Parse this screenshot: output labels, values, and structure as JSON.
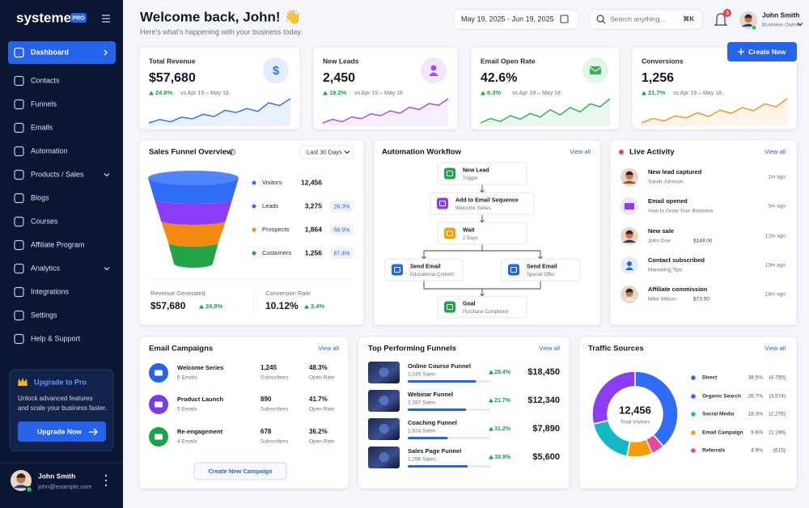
{
  "sidebar": {
    "logo": "systeme",
    "badge": "PRO",
    "nav": [
      "Dashboard",
      "Contacts",
      "Funnels",
      "Emails",
      "Automation",
      "Products / Sales",
      "Blogs",
      "Courses",
      "Affiliate Program",
      "Analytics",
      "Integrations",
      "Settings",
      "Help & Support"
    ],
    "upgrade": {
      "title": "Upgrade to Pro",
      "text_lines": [
        "Unlock advanced features",
        "and scale your business faster."
      ],
      "button": "Upgrade Now"
    },
    "user": {
      "name": "John Smith",
      "email": "john@example.com"
    }
  },
  "header": {
    "title": "Welcome back, John! 👋",
    "subtitle": "Here's what's happening with your business today.",
    "date_range": "May 19, 2025 - Jun 19, 2025",
    "search": "Search anything...",
    "shortcut": "⌘K",
    "notifications": 3,
    "user": {
      "name": "John Smith",
      "role": "Business Owner"
    },
    "create_button": "Create New"
  },
  "stats": [
    {
      "label": "Total Revenue",
      "icon": "$",
      "value": "$57,680",
      "change": "24.8%",
      "compare": "vs Apr 19 – May 18",
      "color": "#3b6ef5",
      "trend": [
        20,
        26,
        22,
        30,
        27,
        35,
        31,
        42,
        38,
        45,
        40,
        55,
        50,
        62
      ]
    },
    {
      "label": "New Leads",
      "value": "2,450",
      "change": "18.2%",
      "compare": "vs Apr 19 – May 18",
      "color": "#a34ee8",
      "trend": [
        18,
        24,
        20,
        28,
        25,
        33,
        30,
        38,
        34,
        44,
        40,
        50,
        47,
        58
      ]
    },
    {
      "label": "Email Open Rate",
      "value": "42.6%",
      "change": "6.3%",
      "compare": "vs Apr 19 – May 18",
      "color": "#34b35a",
      "trend": [
        22,
        28,
        24,
        32,
        27,
        35,
        30,
        40,
        33,
        43,
        37,
        48,
        44,
        55
      ]
    },
    {
      "label": "Conversions",
      "value": "1,256",
      "change": "21.7%",
      "compare": "vs Apr 19 – May 18",
      "color": "#f5962a",
      "trend": [
        20,
        27,
        23,
        31,
        28,
        36,
        30,
        40,
        35,
        44,
        39,
        50,
        45,
        58
      ]
    }
  ],
  "funnel": {
    "title": "Sales Funnel Overview",
    "period": "Last 30 Days",
    "stages": [
      {
        "name": "Visitors",
        "value": "12,456"
      },
      {
        "name": "Leads",
        "value": "3,275",
        "pct": "26.3%"
      },
      {
        "name": "Prospects",
        "value": "1,864",
        "pct": "56.9%"
      },
      {
        "name": "Customers",
        "value": "1,256",
        "pct": "67.4%"
      }
    ],
    "revenue": {
      "label": "Revenue Generated",
      "value": "$57,680",
      "change": "24.8%"
    },
    "conversion": {
      "label": "Conversion Rate",
      "value": "10.12%",
      "change": "3.4%"
    }
  },
  "automation": {
    "title": "Automation Workflow",
    "view_all": "View all",
    "nodes": [
      {
        "title": "New Lead",
        "sub": "Trigger"
      },
      {
        "title": "Add to Email Sequence",
        "sub": "Welcome Series"
      },
      {
        "title": "Wait",
        "sub": "2 Days"
      },
      {
        "title": "Send Email",
        "sub": "Educational Content"
      },
      {
        "title": "Send Email",
        "sub": "Special Offer"
      },
      {
        "title": "Goal",
        "sub": "Purchase Completed"
      }
    ]
  },
  "activity": {
    "title": "Live Activity",
    "view_all": "View all",
    "items": [
      {
        "title": "New lead captured",
        "sub": "Sarah Johnson",
        "time": "2m ago"
      },
      {
        "title": "Email opened",
        "sub": "How to Grow Your Business",
        "time": "5m ago"
      },
      {
        "title": "New sale",
        "sub": "John Doe",
        "amount": "$149.00",
        "time": "12m ago"
      },
      {
        "title": "Contact subscribed",
        "sub": "Marketing Tips",
        "time": "15m ago"
      },
      {
        "title": "Affiliate commission",
        "sub": "Mike Wilson",
        "amount": "$73.50",
        "time": "18m ago"
      }
    ]
  },
  "campaigns": {
    "title": "Email Campaigns",
    "view_all": "View all",
    "rows": [
      {
        "name": "Welcome Series",
        "emails": "6 Emails",
        "subscribers": "1,245",
        "subscribers_label": "Subscribers",
        "open_rate": "48.3%",
        "open_rate_label": "Open Rate"
      },
      {
        "name": "Product Launch",
        "emails": "5 Emails",
        "subscribers": "890",
        "subscribers_label": "Subscribers",
        "open_rate": "41.7%",
        "open_rate_label": "Open Rate"
      },
      {
        "name": "Re-engagement",
        "emails": "4 Emails",
        "subscribers": "678",
        "subscribers_label": "Subscribers",
        "open_rate": "36.2%",
        "open_rate_label": "Open Rate"
      }
    ],
    "button": "Create New Campaign"
  },
  "top_funnels": {
    "title": "Top Performing Funnels",
    "view_all": "View all",
    "rows": [
      {
        "name": "Online Course Funnel",
        "sales": "3,245 Sales",
        "change": "28.4%",
        "revenue": "$18,450",
        "progress": 82
      },
      {
        "name": "Webinar Funnel",
        "sales": "2,187 Sales",
        "change": "21.7%",
        "revenue": "$12,340",
        "progress": 70
      },
      {
        "name": "Coaching Funnel",
        "sales": "1,924 Sales",
        "change": "31.2%",
        "revenue": "$7,890",
        "progress": 48
      },
      {
        "name": "Sales Page Funnel",
        "sales": "1,296 Sales",
        "change": "18.9%",
        "revenue": "$5,600",
        "progress": 72
      }
    ]
  },
  "traffic": {
    "title": "Traffic Sources",
    "view_all": "View all",
    "total": "12,456",
    "total_label": "Total Visitors",
    "chart_data": {
      "type": "pie",
      "categories": [
        "Direct",
        "Organic Search",
        "Social Media",
        "Email Campaign",
        "Referrals"
      ],
      "values": [
        38.5,
        28.7,
        18.3,
        9.6,
        4.9
      ],
      "value_labels": [
        "38.5%",
        "28.7%",
        "18.3%",
        "9.6%",
        "4.9%"
      ],
      "count_labels": [
        "(4,795)",
        "(3,574)",
        "(2,276)",
        "(1,196)",
        "(615)"
      ],
      "colors": [
        "#2f6df6",
        "#8b3cf7",
        "#14b8c4",
        "#f59e0b",
        "#ec4899"
      ]
    }
  }
}
